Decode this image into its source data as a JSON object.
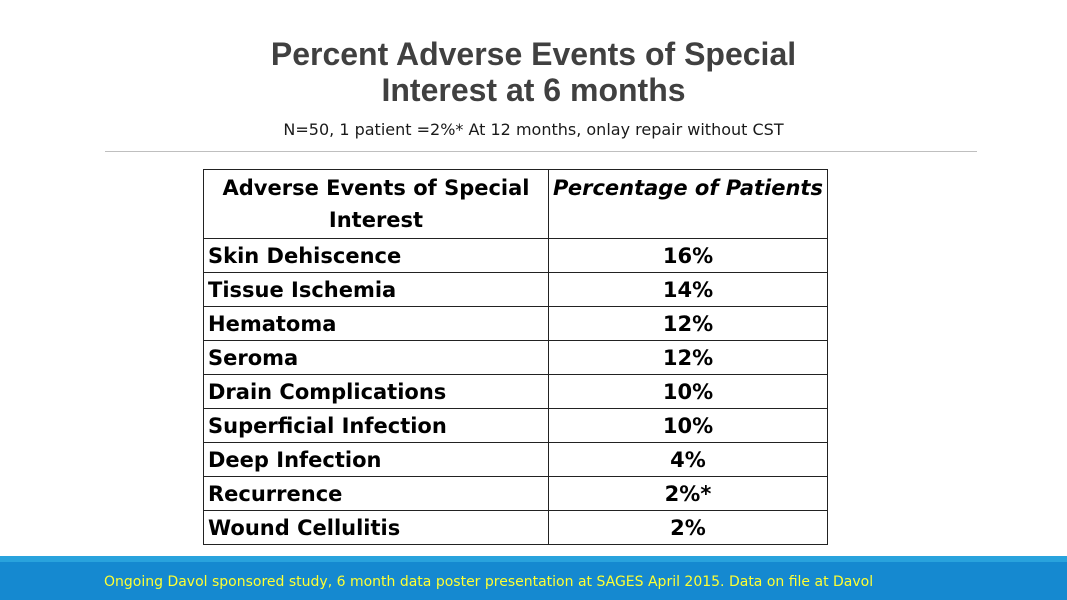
{
  "slide": {
    "title_line1": "Percent Adverse Events of Special",
    "title_line2": "Interest at 6 months",
    "subtitle": "N=50, 1 patient =2%* At 12 months, onlay repair without CST",
    "footer": "Ongoing Davol sponsored study, 6 month data poster presentation at SAGES April 2015.  Data on file at Davol"
  },
  "table": {
    "headers": [
      "Adverse Events of Special Interest",
      "Percentage of Patients"
    ],
    "rows": [
      {
        "event": "Skin Dehiscence",
        "pct": "16%"
      },
      {
        "event": "Tissue Ischemia",
        "pct": "14%"
      },
      {
        "event": "Hematoma",
        "pct": "12%"
      },
      {
        "event": "Seroma",
        "pct": "12%"
      },
      {
        "event": "Drain Complications",
        "pct": "10%"
      },
      {
        "event": "Superficial Infection",
        "pct": "10%"
      },
      {
        "event": "Deep Infection",
        "pct": "4%"
      },
      {
        "event": "Recurrence",
        "pct": "2%*"
      },
      {
        "event": "Wound Cellulitis",
        "pct": "2%"
      }
    ]
  },
  "colors": {
    "footer_band": "#1589d0",
    "footer_text": "#ffff33",
    "title": "#404040"
  }
}
